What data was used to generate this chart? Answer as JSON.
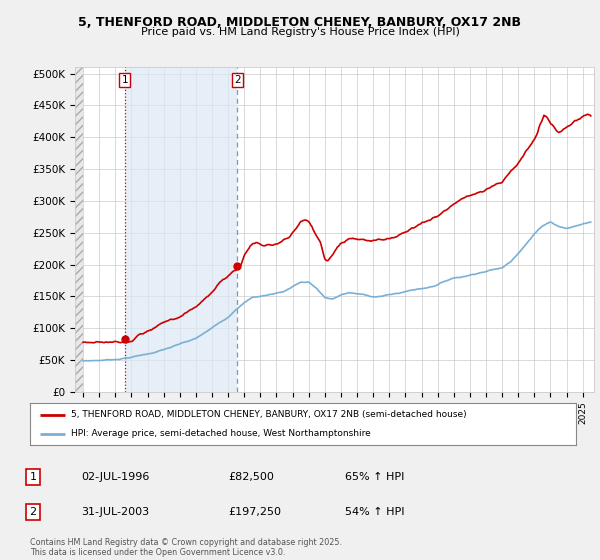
{
  "title1": "5, THENFORD ROAD, MIDDLETON CHENEY, BANBURY, OX17 2NB",
  "title2": "Price paid vs. HM Land Registry's House Price Index (HPI)",
  "ylim": [
    0,
    510000
  ],
  "yticks": [
    0,
    50000,
    100000,
    150000,
    200000,
    250000,
    300000,
    350000,
    400000,
    450000,
    500000
  ],
  "ytick_labels": [
    "£0",
    "£50K",
    "£100K",
    "£150K",
    "£200K",
    "£250K",
    "£300K",
    "£350K",
    "£400K",
    "£450K",
    "£500K"
  ],
  "background_color": "#f0f0f0",
  "plot_bg": "#ffffff",
  "red_color": "#cc0000",
  "blue_color": "#7bafd4",
  "blue_shade": "#dce8f5",
  "marker1_year": 1996.58,
  "marker1_price": 82500,
  "marker2_year": 2003.58,
  "marker2_price": 197250,
  "legend_line1": "5, THENFORD ROAD, MIDDLETON CHENEY, BANBURY, OX17 2NB (semi-detached house)",
  "legend_line2": "HPI: Average price, semi-detached house, West Northamptonshire",
  "table_row1_num": "1",
  "table_row1_date": "02-JUL-1996",
  "table_row1_price": "£82,500",
  "table_row1_hpi": "65% ↑ HPI",
  "table_row2_num": "2",
  "table_row2_date": "31-JUL-2003",
  "table_row2_price": "£197,250",
  "table_row2_hpi": "54% ↑ HPI",
  "footer": "Contains HM Land Registry data © Crown copyright and database right 2025.\nThis data is licensed under the Open Government Licence v3.0.",
  "xmin": 1993.5,
  "xmax": 2025.7
}
